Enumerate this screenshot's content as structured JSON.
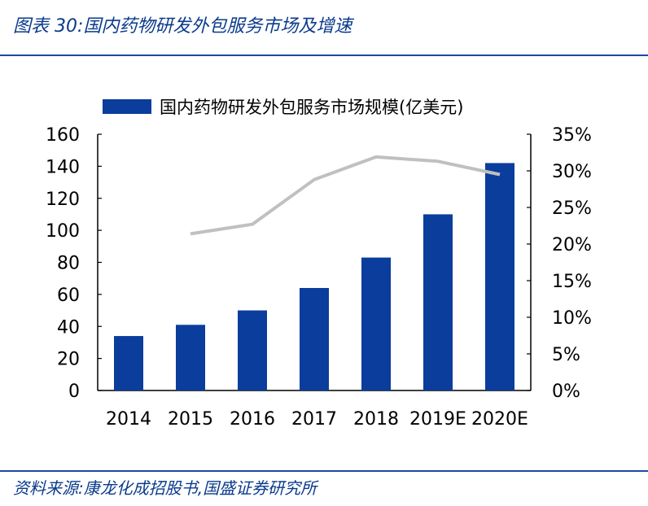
{
  "header": {
    "title": "图表 30:国内药物研发外包服务市场及增速"
  },
  "footer": {
    "source": "资料来源:康龙化成招股书,国盛证券研究所"
  },
  "colors": {
    "bar": "#0a3d9c",
    "line": "#c0c0c0",
    "accent": "#0a3a8c"
  },
  "chart_data": {
    "type": "bar",
    "categories": [
      "2014",
      "2015",
      "2016",
      "2017",
      "2018",
      "2019E",
      "2020E"
    ],
    "series": [
      {
        "name": "国内药物研发外包服务市场规模(亿美元)",
        "type": "bar",
        "axis": "left",
        "values": [
          34,
          41,
          50,
          64,
          83,
          110,
          142
        ]
      },
      {
        "type": "line",
        "axis": "right",
        "values": [
          null,
          0.214,
          0.227,
          0.288,
          0.319,
          0.313,
          0.295
        ]
      }
    ],
    "y_left": {
      "min": 0,
      "max": 160,
      "ticks": [
        "0",
        "20",
        "40",
        "60",
        "80",
        "100",
        "120",
        "140",
        "160"
      ]
    },
    "y_right": {
      "min": 0,
      "max": 0.35,
      "ticks": [
        "0%",
        "5%",
        "10%",
        "15%",
        "20%",
        "25%",
        "30%",
        "35%"
      ]
    },
    "legend": "top",
    "grid": false
  }
}
